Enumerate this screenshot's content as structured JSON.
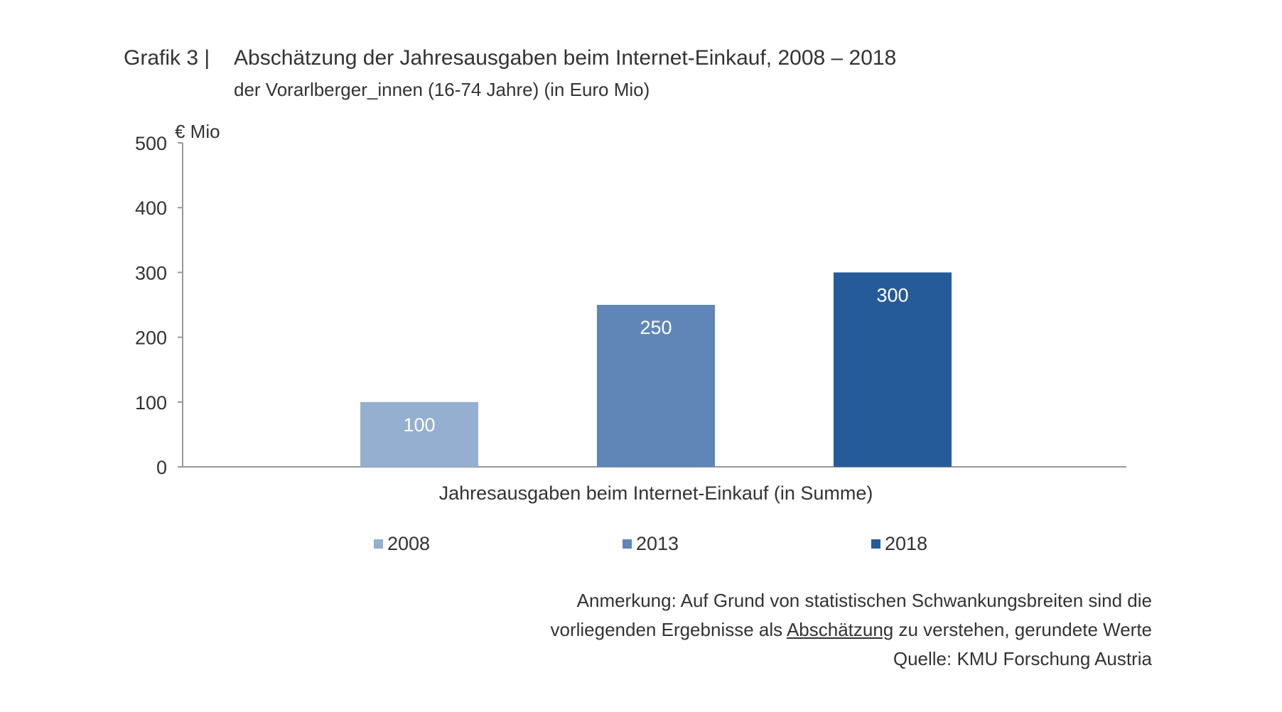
{
  "header": {
    "figure_label": "Grafik 3 |",
    "title": "Abschätzung der Jahresausgaben beim Internet-Einkauf, 2008 – 2018",
    "subtitle": "der Vorarlberger_innen (16-74 Jahre) (in Euro Mio)"
  },
  "chart_data": {
    "type": "bar",
    "title": "Abschätzung der Jahresausgaben beim Internet-Einkauf, 2008 – 2018",
    "subtitle": "der Vorarlberger_innen (16-74 Jahre) (in Euro Mio)",
    "categories": [
      "Jahresausgaben beim Internet-Einkauf (in Summe)"
    ],
    "series": [
      {
        "name": "2008",
        "values": [
          100
        ],
        "color": "#94afd0"
      },
      {
        "name": "2013",
        "values": [
          250
        ],
        "color": "#5f86b6"
      },
      {
        "name": "2018",
        "values": [
          300
        ],
        "color": "#265b9a"
      }
    ],
    "data_labels": [
      "100",
      "250",
      "300"
    ],
    "ylabel": "€ Mio",
    "xlabel": "Jahresausgaben beim Internet-Einkauf (in Summe)",
    "ylim": [
      0,
      500
    ],
    "yticks": [
      0,
      100,
      200,
      300,
      400,
      500
    ],
    "grid": false,
    "legend_position": "bottom"
  },
  "notes": {
    "line1": "Anmerkung: Auf Grund von statistischen Schwankungsbreiten sind die",
    "line2_before": "vorliegenden Ergebnisse als ",
    "line2_underlined": "Abschätzung",
    "line2_after": " zu verstehen, gerundete Werte",
    "source": "Quelle: KMU Forschung Austria"
  },
  "colors": {
    "text": "#333333",
    "axis": "#999999",
    "bar_label": "#ffffff"
  }
}
